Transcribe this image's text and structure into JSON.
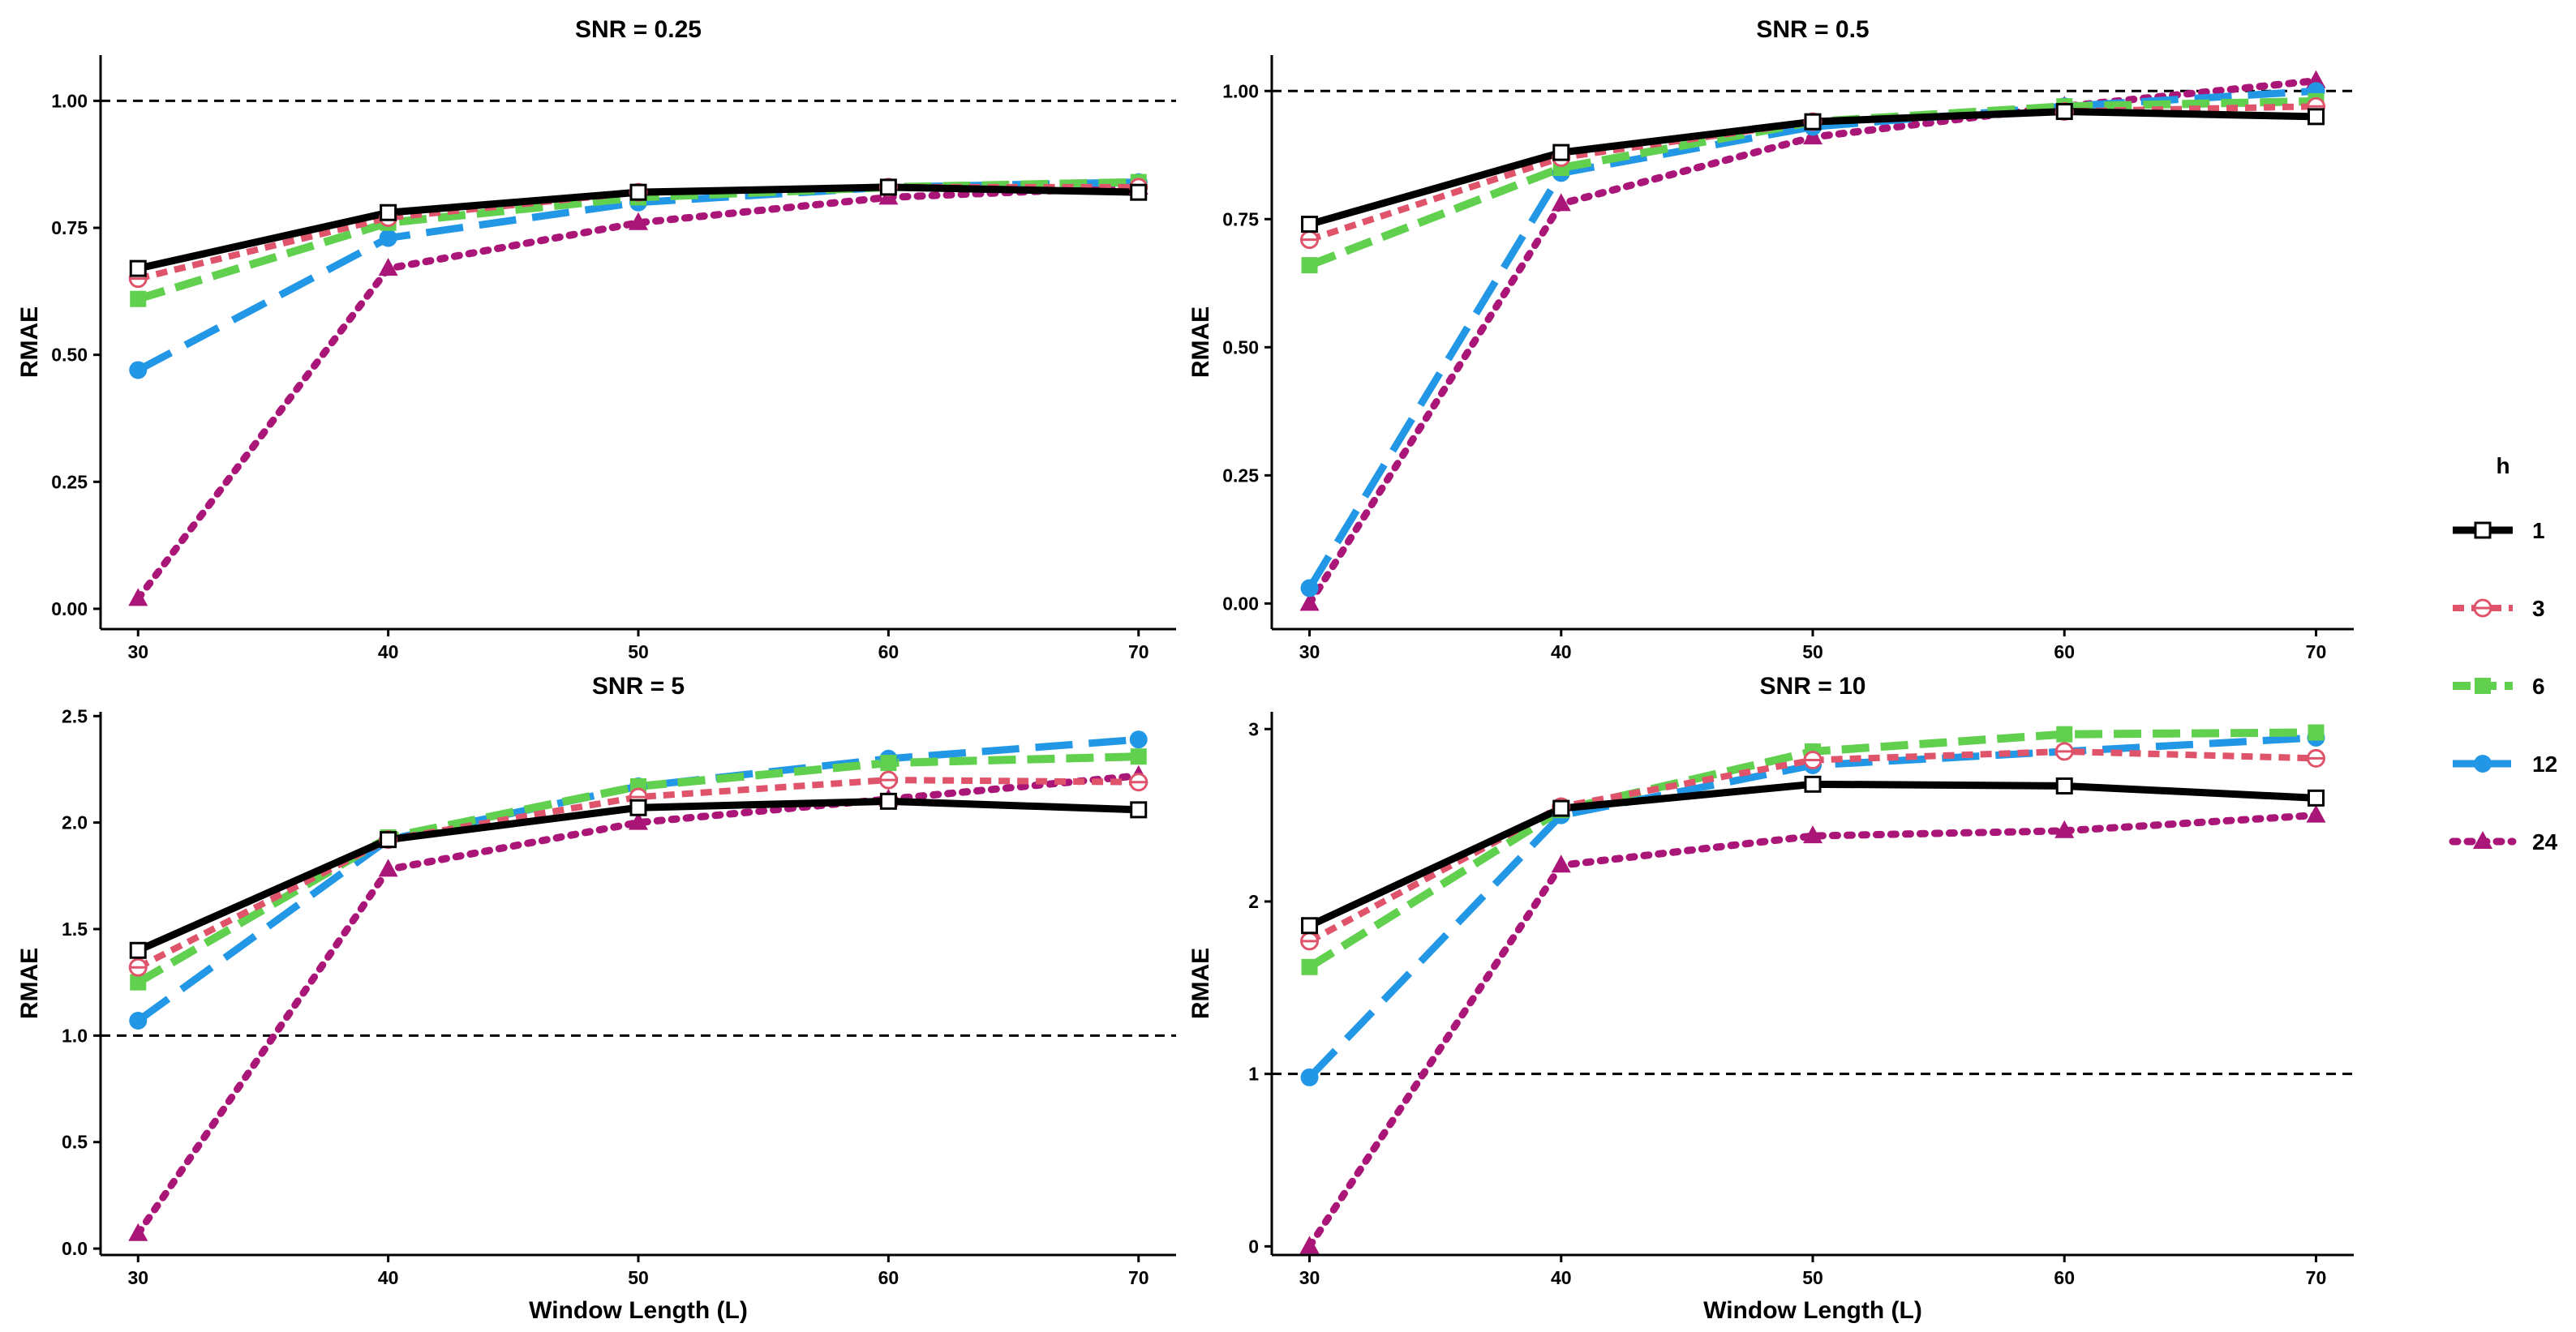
{
  "chart_data": [
    {
      "type": "line",
      "title": "SNR = 0.25",
      "xlabel": "",
      "ylabel": "RMAE",
      "x": [
        30,
        40,
        50,
        60,
        70
      ],
      "xlim": [
        28.5,
        71.5
      ],
      "ylim": [
        -0.04,
        1.09
      ],
      "yticks": [
        "0.00",
        "0.25",
        "0.50",
        "0.75",
        "1.00"
      ],
      "reference_line": 1.0,
      "series": [
        {
          "name": "1",
          "values": [
            0.67,
            0.78,
            0.82,
            0.83,
            0.82
          ]
        },
        {
          "name": "3",
          "values": [
            0.65,
            0.77,
            0.82,
            0.83,
            0.83
          ]
        },
        {
          "name": "6",
          "values": [
            0.61,
            0.76,
            0.81,
            0.83,
            0.84
          ]
        },
        {
          "name": "12",
          "values": [
            0.47,
            0.73,
            0.8,
            0.83,
            0.84
          ]
        },
        {
          "name": "24",
          "values": [
            0.02,
            0.67,
            0.76,
            0.81,
            0.83
          ]
        }
      ]
    },
    {
      "type": "line",
      "title": "SNR = 0.5",
      "xlabel": "",
      "ylabel": "RMAE",
      "x": [
        30,
        40,
        50,
        60,
        70
      ],
      "xlim": [
        28.5,
        71.5
      ],
      "ylim": [
        -0.05,
        1.07
      ],
      "yticks": [
        "0.00",
        "0.25",
        "0.50",
        "0.75",
        "1.00"
      ],
      "reference_line": 1.0,
      "series": [
        {
          "name": "1",
          "values": [
            0.74,
            0.88,
            0.94,
            0.96,
            0.95
          ]
        },
        {
          "name": "3",
          "values": [
            0.71,
            0.87,
            0.94,
            0.96,
            0.97
          ]
        },
        {
          "name": "6",
          "values": [
            0.66,
            0.85,
            0.94,
            0.97,
            0.98
          ]
        },
        {
          "name": "12",
          "values": [
            0.03,
            0.84,
            0.93,
            0.97,
            1.0
          ]
        },
        {
          "name": "24",
          "values": [
            0.0,
            0.78,
            0.91,
            0.97,
            1.02
          ]
        }
      ]
    },
    {
      "type": "line",
      "title": "SNR = 5",
      "xlabel": "Window Length (L)",
      "ylabel": "RMAE",
      "x": [
        30,
        40,
        50,
        60,
        70
      ],
      "xlim": [
        28.5,
        71.5
      ],
      "ylim": [
        -0.03,
        2.52
      ],
      "yticks": [
        "0.0",
        "0.5",
        "1.0",
        "1.5",
        "2.0",
        "2.5"
      ],
      "reference_line": 1.0,
      "series": [
        {
          "name": "1",
          "values": [
            1.4,
            1.92,
            2.07,
            2.1,
            2.06
          ]
        },
        {
          "name": "3",
          "values": [
            1.32,
            1.92,
            2.12,
            2.2,
            2.19
          ]
        },
        {
          "name": "6",
          "values": [
            1.25,
            1.93,
            2.17,
            2.28,
            2.31
          ]
        },
        {
          "name": "12",
          "values": [
            1.07,
            1.92,
            2.17,
            2.3,
            2.39
          ]
        },
        {
          "name": "24",
          "values": [
            0.07,
            1.78,
            2.0,
            2.11,
            2.22
          ]
        }
      ]
    },
    {
      "type": "line",
      "title": "SNR = 10",
      "xlabel": "Window Length (L)",
      "ylabel": "RMAE",
      "x": [
        30,
        40,
        50,
        60,
        70
      ],
      "xlim": [
        28.5,
        71.5
      ],
      "ylim": [
        -0.05,
        3.1
      ],
      "yticks": [
        "0",
        "1",
        "2",
        "3"
      ],
      "reference_line": 1.0,
      "series": [
        {
          "name": "1",
          "values": [
            1.86,
            2.54,
            2.68,
            2.67,
            2.6
          ]
        },
        {
          "name": "3",
          "values": [
            1.77,
            2.55,
            2.82,
            2.87,
            2.83
          ]
        },
        {
          "name": "6",
          "values": [
            1.62,
            2.53,
            2.87,
            2.97,
            2.98
          ]
        },
        {
          "name": "12",
          "values": [
            0.98,
            2.5,
            2.79,
            2.87,
            2.95
          ]
        },
        {
          "name": "24",
          "values": [
            0.0,
            2.21,
            2.38,
            2.41,
            2.5
          ]
        }
      ]
    }
  ],
  "legend": {
    "title": "h",
    "position": "right",
    "items": [
      {
        "label": "1",
        "color": "#000000",
        "marker": "open-square",
        "line": "solid"
      },
      {
        "label": "3",
        "color": "#DF536B",
        "marker": "open-circle",
        "line": "dotted"
      },
      {
        "label": "6",
        "color": "#61D04F",
        "marker": "filled-square",
        "line": "dashed"
      },
      {
        "label": "12",
        "color": "#2297E6",
        "marker": "filled-circle",
        "line": "longdash"
      },
      {
        "label": "24",
        "color": "#AA1677",
        "marker": "filled-triangle",
        "line": "dotted-fine"
      }
    ]
  }
}
